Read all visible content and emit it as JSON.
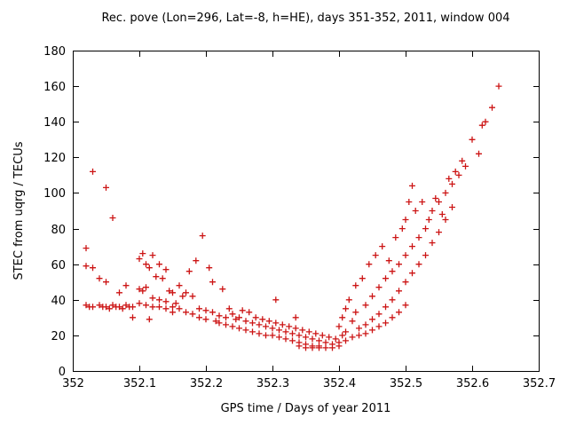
{
  "chart_data": {
    "type": "scatter",
    "title": "Rec. pove (Lon=296, Lat=-8, h=HE), days 351-352, 2011, window 004",
    "xlabel": "GPS time / Days of year 2011",
    "ylabel": "STEC from uqrg / TECUs",
    "xlim": [
      352.0,
      352.7
    ],
    "ylim": [
      0,
      180
    ],
    "grid": false,
    "legend_position": "none",
    "marker": "plus",
    "marker_color": "#cc1414",
    "axis_color": "#000000",
    "background_color": "#ffffff",
    "xticks": [
      {
        "v": 352.0,
        "label": "352"
      },
      {
        "v": 352.1,
        "label": "352.1"
      },
      {
        "v": 352.2,
        "label": "352.2"
      },
      {
        "v": 352.3,
        "label": "352.3"
      },
      {
        "v": 352.4,
        "label": "352.4"
      },
      {
        "v": 352.5,
        "label": "352.5"
      },
      {
        "v": 352.6,
        "label": "352.6"
      },
      {
        "v": 352.7,
        "label": "352.7"
      }
    ],
    "yticks": [
      {
        "v": 0,
        "label": "0"
      },
      {
        "v": 20,
        "label": "20"
      },
      {
        "v": 40,
        "label": "40"
      },
      {
        "v": 60,
        "label": "60"
      },
      {
        "v": 80,
        "label": "80"
      },
      {
        "v": 100,
        "label": "100"
      },
      {
        "v": 120,
        "label": "120"
      },
      {
        "v": 140,
        "label": "140"
      },
      {
        "v": 160,
        "label": "160"
      },
      {
        "v": 180,
        "label": "180"
      }
    ],
    "points": [
      [
        352.02,
        69
      ],
      [
        352.02,
        59
      ],
      [
        352.02,
        37
      ],
      [
        352.025,
        36
      ],
      [
        352.03,
        112
      ],
      [
        352.03,
        58
      ],
      [
        352.03,
        36
      ],
      [
        352.04,
        52
      ],
      [
        352.04,
        37
      ],
      [
        352.045,
        36
      ],
      [
        352.05,
        103
      ],
      [
        352.05,
        50
      ],
      [
        352.05,
        36
      ],
      [
        352.055,
        35
      ],
      [
        352.06,
        86
      ],
      [
        352.06,
        37
      ],
      [
        352.065,
        36
      ],
      [
        352.07,
        44
      ],
      [
        352.07,
        36
      ],
      [
        352.075,
        35
      ],
      [
        352.08,
        48
      ],
      [
        352.08,
        37
      ],
      [
        352.085,
        36
      ],
      [
        352.09,
        36
      ],
      [
        352.09,
        30
      ],
      [
        352.1,
        63
      ],
      [
        352.1,
        46
      ],
      [
        352.1,
        38
      ],
      [
        352.105,
        66
      ],
      [
        352.105,
        45
      ],
      [
        352.11,
        60
      ],
      [
        352.11,
        47
      ],
      [
        352.11,
        37
      ],
      [
        352.115,
        58
      ],
      [
        352.115,
        29
      ],
      [
        352.12,
        65
      ],
      [
        352.12,
        41
      ],
      [
        352.12,
        36
      ],
      [
        352.125,
        53
      ],
      [
        352.13,
        60
      ],
      [
        352.13,
        40
      ],
      [
        352.13,
        36
      ],
      [
        352.135,
        52
      ],
      [
        352.14,
        57
      ],
      [
        352.14,
        39
      ],
      [
        352.14,
        35
      ],
      [
        352.145,
        45
      ],
      [
        352.15,
        44
      ],
      [
        352.15,
        36
      ],
      [
        352.15,
        33
      ],
      [
        352.155,
        38
      ],
      [
        352.16,
        48
      ],
      [
        352.16,
        35
      ],
      [
        352.165,
        42
      ],
      [
        352.17,
        44
      ],
      [
        352.17,
        33
      ],
      [
        352.175,
        56
      ],
      [
        352.18,
        42
      ],
      [
        352.18,
        32
      ],
      [
        352.185,
        62
      ],
      [
        352.19,
        35
      ],
      [
        352.19,
        30
      ],
      [
        352.195,
        76
      ],
      [
        352.2,
        34
      ],
      [
        352.2,
        29
      ],
      [
        352.205,
        58
      ],
      [
        352.21,
        50
      ],
      [
        352.21,
        33
      ],
      [
        352.215,
        28
      ],
      [
        352.22,
        31
      ],
      [
        352.22,
        27
      ],
      [
        352.225,
        46
      ],
      [
        352.23,
        30
      ],
      [
        352.23,
        26
      ],
      [
        352.235,
        35
      ],
      [
        352.24,
        32
      ],
      [
        352.24,
        25
      ],
      [
        352.245,
        29
      ],
      [
        352.25,
        30
      ],
      [
        352.25,
        24
      ],
      [
        352.255,
        34
      ],
      [
        352.26,
        28
      ],
      [
        352.26,
        23
      ],
      [
        352.265,
        33
      ],
      [
        352.27,
        27
      ],
      [
        352.27,
        22
      ],
      [
        352.275,
        30
      ],
      [
        352.28,
        26
      ],
      [
        352.28,
        21
      ],
      [
        352.285,
        29
      ],
      [
        352.29,
        25
      ],
      [
        352.29,
        20
      ],
      [
        352.295,
        28
      ],
      [
        352.3,
        24
      ],
      [
        352.3,
        20
      ],
      [
        352.305,
        40
      ],
      [
        352.305,
        27
      ],
      [
        352.31,
        23
      ],
      [
        352.31,
        19
      ],
      [
        352.315,
        26
      ],
      [
        352.32,
        22
      ],
      [
        352.32,
        18
      ],
      [
        352.325,
        25
      ],
      [
        352.33,
        21
      ],
      [
        352.33,
        17
      ],
      [
        352.335,
        30
      ],
      [
        352.335,
        24
      ],
      [
        352.34,
        20
      ],
      [
        352.34,
        16
      ],
      [
        352.34,
        14
      ],
      [
        352.345,
        23
      ],
      [
        352.35,
        19
      ],
      [
        352.35,
        15
      ],
      [
        352.35,
        13
      ],
      [
        352.355,
        22
      ],
      [
        352.36,
        18
      ],
      [
        352.36,
        14
      ],
      [
        352.36,
        13
      ],
      [
        352.365,
        21
      ],
      [
        352.37,
        17
      ],
      [
        352.37,
        14
      ],
      [
        352.37,
        13
      ],
      [
        352.375,
        20
      ],
      [
        352.38,
        16
      ],
      [
        352.38,
        13
      ],
      [
        352.385,
        19
      ],
      [
        352.39,
        15
      ],
      [
        352.39,
        13
      ],
      [
        352.395,
        18
      ],
      [
        352.4,
        25
      ],
      [
        352.4,
        16
      ],
      [
        352.4,
        14
      ],
      [
        352.405,
        30
      ],
      [
        352.405,
        20
      ],
      [
        352.41,
        35
      ],
      [
        352.41,
        22
      ],
      [
        352.41,
        17
      ],
      [
        352.415,
        40
      ],
      [
        352.42,
        28
      ],
      [
        352.42,
        19
      ],
      [
        352.425,
        48
      ],
      [
        352.425,
        33
      ],
      [
        352.43,
        24
      ],
      [
        352.43,
        20
      ],
      [
        352.435,
        52
      ],
      [
        352.44,
        37
      ],
      [
        352.44,
        26
      ],
      [
        352.44,
        21
      ],
      [
        352.445,
        60
      ],
      [
        352.45,
        42
      ],
      [
        352.45,
        29
      ],
      [
        352.45,
        23
      ],
      [
        352.455,
        65
      ],
      [
        352.46,
        47
      ],
      [
        352.46,
        32
      ],
      [
        352.46,
        25
      ],
      [
        352.465,
        70
      ],
      [
        352.47,
        52
      ],
      [
        352.47,
        36
      ],
      [
        352.47,
        27
      ],
      [
        352.475,
        62
      ],
      [
        352.48,
        56
      ],
      [
        352.48,
        40
      ],
      [
        352.48,
        30
      ],
      [
        352.485,
        75
      ],
      [
        352.49,
        60
      ],
      [
        352.49,
        45
      ],
      [
        352.49,
        33
      ],
      [
        352.495,
        80
      ],
      [
        352.5,
        85
      ],
      [
        352.5,
        65
      ],
      [
        352.5,
        50
      ],
      [
        352.5,
        37
      ],
      [
        352.505,
        95
      ],
      [
        352.51,
        104
      ],
      [
        352.51,
        70
      ],
      [
        352.51,
        55
      ],
      [
        352.515,
        90
      ],
      [
        352.52,
        75
      ],
      [
        352.52,
        60
      ],
      [
        352.525,
        95
      ],
      [
        352.53,
        80
      ],
      [
        352.53,
        65
      ],
      [
        352.535,
        85
      ],
      [
        352.54,
        90
      ],
      [
        352.54,
        72
      ],
      [
        352.545,
        97
      ],
      [
        352.55,
        95
      ],
      [
        352.55,
        78
      ],
      [
        352.555,
        88
      ],
      [
        352.56,
        100
      ],
      [
        352.56,
        85
      ],
      [
        352.565,
        108
      ],
      [
        352.57,
        105
      ],
      [
        352.57,
        92
      ],
      [
        352.575,
        112
      ],
      [
        352.58,
        110
      ],
      [
        352.585,
        118
      ],
      [
        352.59,
        115
      ],
      [
        352.6,
        130
      ],
      [
        352.61,
        122
      ],
      [
        352.615,
        138
      ],
      [
        352.62,
        140
      ],
      [
        352.63,
        148
      ],
      [
        352.64,
        160
      ]
    ]
  }
}
